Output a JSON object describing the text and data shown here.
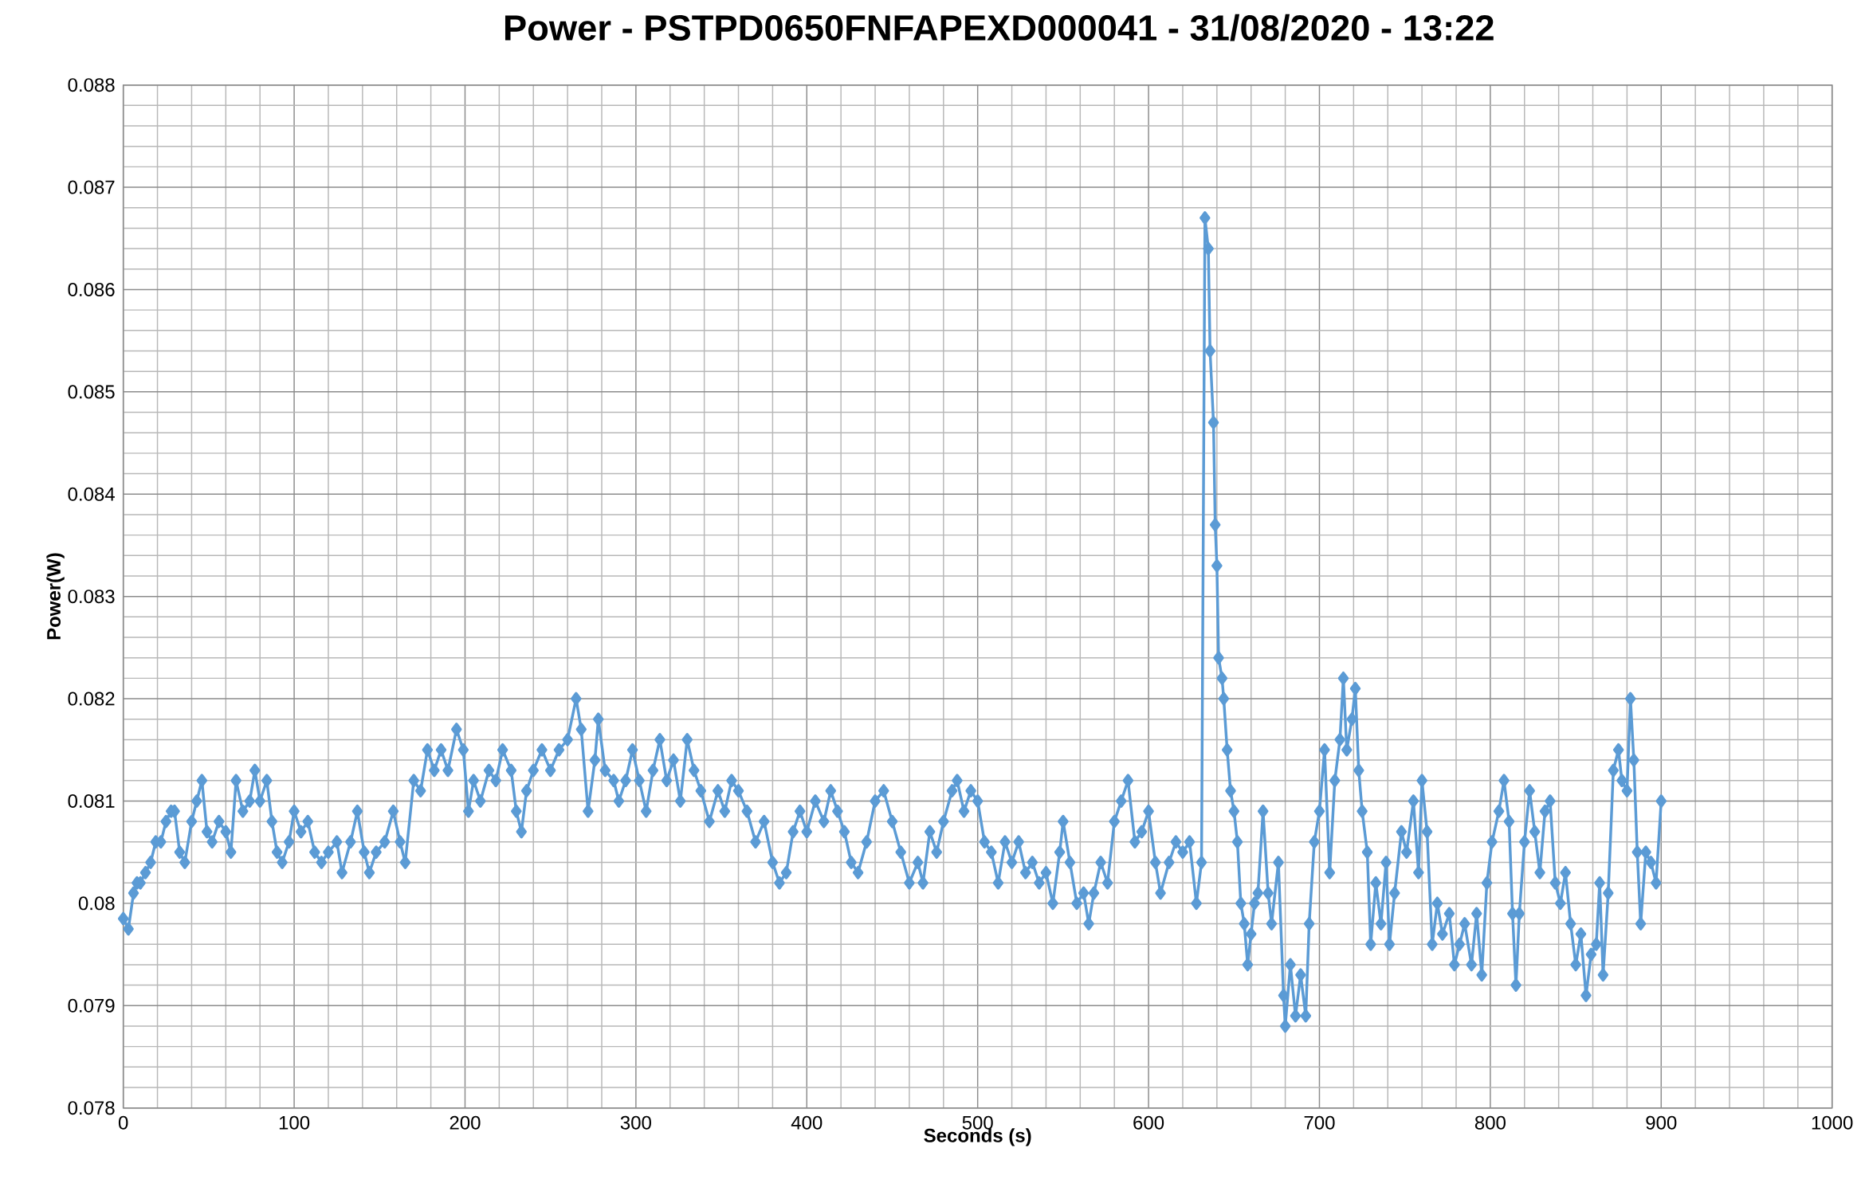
{
  "chart_data": {
    "type": "line",
    "title": "Power - PSTPD0650FNFAPEXD000041 - 31/08/2020 - 13:22",
    "xlabel": "Seconds (s)",
    "ylabel": "Power(W)",
    "xlim": [
      0,
      1000
    ],
    "xticks": [
      0,
      100,
      200,
      300,
      400,
      500,
      600,
      700,
      800,
      900,
      1000
    ],
    "ylim": [
      0.078,
      0.088
    ],
    "yticks": [
      0.078,
      0.079,
      0.08,
      0.081,
      0.082,
      0.083,
      0.084,
      0.085,
      0.086,
      0.087,
      0.088
    ],
    "grid": true,
    "marker": "diamond",
    "color": "#5b9bd5",
    "x": [
      0,
      3,
      6,
      8,
      10,
      13,
      16,
      19,
      22,
      25,
      28,
      30,
      33,
      36,
      40,
      43,
      46,
      49,
      52,
      56,
      60,
      63,
      66,
      70,
      74,
      77,
      80,
      84,
      87,
      90,
      93,
      97,
      100,
      104,
      108,
      112,
      116,
      120,
      125,
      128,
      133,
      137,
      141,
      144,
      148,
      153,
      158,
      162,
      165,
      170,
      174,
      178,
      182,
      186,
      190,
      195,
      199,
      202,
      205,
      209,
      214,
      218,
      222,
      227,
      230,
      233,
      236,
      240,
      245,
      250,
      255,
      260,
      265,
      268,
      272,
      276,
      278,
      282,
      287,
      290,
      294,
      298,
      302,
      306,
      310,
      314,
      318,
      322,
      326,
      330,
      334,
      338,
      343,
      348,
      352,
      356,
      360,
      365,
      370,
      375,
      380,
      384,
      388,
      392,
      396,
      400,
      405,
      410,
      414,
      418,
      422,
      426,
      430,
      435,
      440,
      445,
      450,
      455,
      460,
      465,
      468,
      472,
      476,
      480,
      485,
      488,
      492,
      496,
      500,
      504,
      508,
      512,
      516,
      520,
      524,
      528,
      532,
      536,
      540,
      544,
      548,
      550,
      554,
      558,
      562,
      565,
      568,
      572,
      576,
      580,
      584,
      588,
      592,
      596,
      600,
      604,
      607,
      612,
      616,
      620,
      624,
      628,
      631,
      633,
      635,
      636,
      638,
      639,
      640,
      641,
      643,
      644,
      646,
      648,
      650,
      652,
      654,
      656,
      658,
      660,
      662,
      664,
      667,
      670,
      672,
      676,
      679,
      680,
      683,
      686,
      689,
      692,
      694,
      697,
      700,
      703,
      706,
      709,
      712,
      714,
      716,
      719,
      721,
      723,
      725,
      728,
      730,
      733,
      736,
      739,
      741,
      744,
      748,
      751,
      755,
      758,
      760,
      763,
      766,
      769,
      772,
      776,
      779,
      782,
      785,
      789,
      792,
      795,
      798,
      801,
      805,
      808,
      811,
      813,
      815,
      817,
      820,
      823,
      826,
      829,
      832,
      835,
      838,
      841,
      844,
      847,
      850,
      853,
      856,
      859,
      862,
      864,
      866,
      869,
      872,
      875,
      877,
      880,
      882,
      884,
      886,
      888,
      891,
      894,
      897,
      900
    ],
    "values": [
      0.07985,
      0.07975,
      0.0801,
      0.0802,
      0.0802,
      0.0803,
      0.0804,
      0.0806,
      0.0806,
      0.0808,
      0.0809,
      0.0809,
      0.0805,
      0.0804,
      0.0808,
      0.081,
      0.0812,
      0.0807,
      0.0806,
      0.0808,
      0.0807,
      0.0805,
      0.0812,
      0.0809,
      0.081,
      0.0813,
      0.081,
      0.0812,
      0.0808,
      0.0805,
      0.0804,
      0.0806,
      0.0809,
      0.0807,
      0.0808,
      0.0805,
      0.0804,
      0.0805,
      0.0806,
      0.0803,
      0.0806,
      0.0809,
      0.0805,
      0.0803,
      0.0805,
      0.0806,
      0.0809,
      0.0806,
      0.0804,
      0.0812,
      0.0811,
      0.0815,
      0.0813,
      0.0815,
      0.0813,
      0.0817,
      0.0815,
      0.0809,
      0.0812,
      0.081,
      0.0813,
      0.0812,
      0.0815,
      0.0813,
      0.0809,
      0.0807,
      0.0811,
      0.0813,
      0.0815,
      0.0813,
      0.0815,
      0.0816,
      0.082,
      0.0817,
      0.0809,
      0.0814,
      0.0818,
      0.0813,
      0.0812,
      0.081,
      0.0812,
      0.0815,
      0.0812,
      0.0809,
      0.0813,
      0.0816,
      0.0812,
      0.0814,
      0.081,
      0.0816,
      0.0813,
      0.0811,
      0.0808,
      0.0811,
      0.0809,
      0.0812,
      0.0811,
      0.0809,
      0.0806,
      0.0808,
      0.0804,
      0.0802,
      0.0803,
      0.0807,
      0.0809,
      0.0807,
      0.081,
      0.0808,
      0.0811,
      0.0809,
      0.0807,
      0.0804,
      0.0803,
      0.0806,
      0.081,
      0.0811,
      0.0808,
      0.0805,
      0.0802,
      0.0804,
      0.0802,
      0.0807,
      0.0805,
      0.0808,
      0.0811,
      0.0812,
      0.0809,
      0.0811,
      0.081,
      0.0806,
      0.0805,
      0.0802,
      0.0806,
      0.0804,
      0.0806,
      0.0803,
      0.0804,
      0.0802,
      0.0803,
      0.08,
      0.0805,
      0.0808,
      0.0804,
      0.08,
      0.0801,
      0.0798,
      0.0801,
      0.0804,
      0.0802,
      0.0808,
      0.081,
      0.0812,
      0.0806,
      0.0807,
      0.0809,
      0.0804,
      0.0801,
      0.0804,
      0.0806,
      0.0805,
      0.0806,
      0.08,
      0.0804,
      0.0867,
      0.0864,
      0.0854,
      0.0847,
      0.0837,
      0.0833,
      0.0824,
      0.0822,
      0.082,
      0.0815,
      0.0811,
      0.0809,
      0.0806,
      0.08,
      0.0798,
      0.0794,
      0.0797,
      0.08,
      0.0801,
      0.0809,
      0.0801,
      0.0798,
      0.0804,
      0.0791,
      0.0788,
      0.0794,
      0.0789,
      0.0793,
      0.0789,
      0.0798,
      0.0806,
      0.0809,
      0.0815,
      0.0803,
      0.0812,
      0.0816,
      0.0822,
      0.0815,
      0.0818,
      0.0821,
      0.0813,
      0.0809,
      0.0805,
      0.0796,
      0.0802,
      0.0798,
      0.0804,
      0.0796,
      0.0801,
      0.0807,
      0.0805,
      0.081,
      0.0803,
      0.0812,
      0.0807,
      0.0796,
      0.08,
      0.0797,
      0.0799,
      0.0794,
      0.0796,
      0.0798,
      0.0794,
      0.0799,
      0.0793,
      0.0802,
      0.0806,
      0.0809,
      0.0812,
      0.0808,
      0.0799,
      0.0792,
      0.0799,
      0.0806,
      0.0811,
      0.0807,
      0.0803,
      0.0809,
      0.081,
      0.0802,
      0.08,
      0.0803,
      0.0798,
      0.0794,
      0.0797,
      0.0791,
      0.0795,
      0.0796,
      0.0802,
      0.0793,
      0.0801,
      0.0813,
      0.0815,
      0.0812,
      0.0811,
      0.082,
      0.0814,
      0.0805,
      0.0798,
      0.0805,
      0.0804,
      0.0802,
      0.081
    ]
  }
}
